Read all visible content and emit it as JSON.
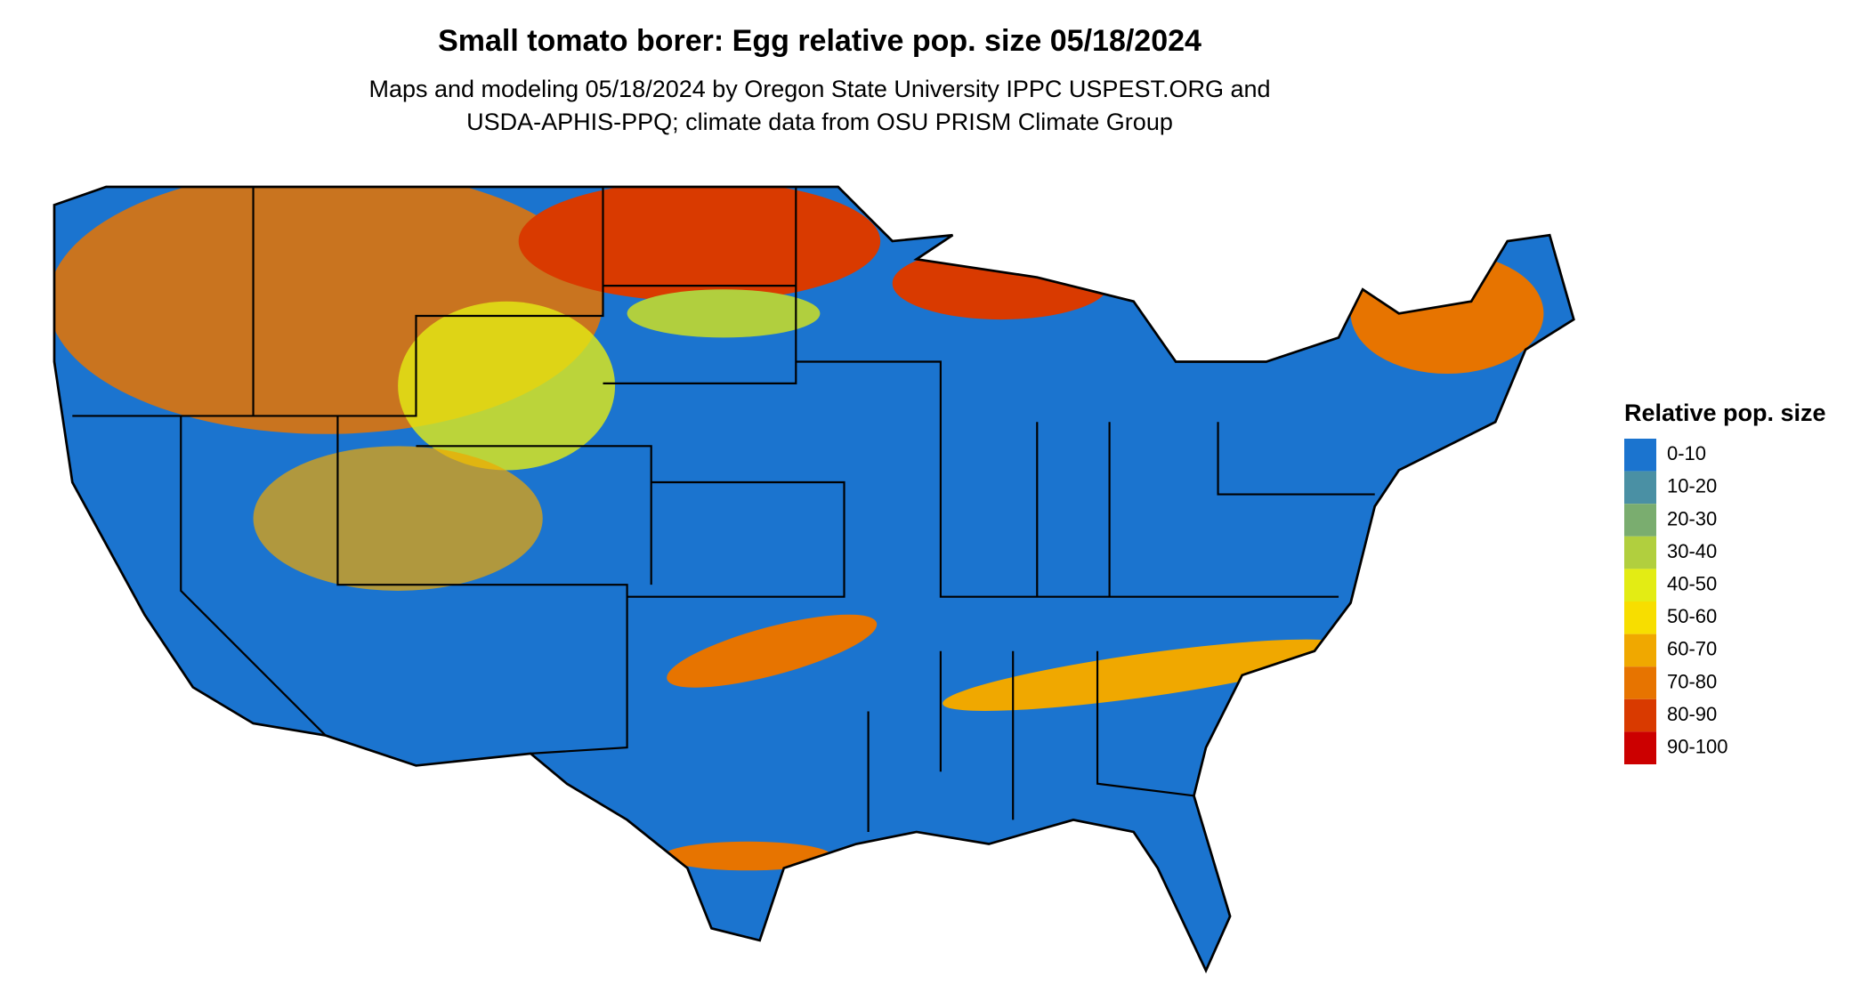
{
  "title": "Small tomato borer: Egg relative pop. size 05/18/2024",
  "subtitle_lines": [
    "Maps and modeling 05/18/2024 by Oregon State University IPPC USPEST.ORG and",
    "USDA-APHIS-PPQ; climate data from OSU PRISM Climate Group"
  ],
  "legend": {
    "title": "Relative pop. size",
    "items": [
      {
        "label": "0-10",
        "color": "#1b74cf"
      },
      {
        "label": "10-20",
        "color": "#4a90a4"
      },
      {
        "label": "20-30",
        "color": "#7aad6f"
      },
      {
        "label": "30-40",
        "color": "#b1cf3e"
      },
      {
        "label": "40-50",
        "color": "#e3ec14"
      },
      {
        "label": "50-60",
        "color": "#f7de00"
      },
      {
        "label": "60-70",
        "color": "#f0a800"
      },
      {
        "label": "70-80",
        "color": "#e77400"
      },
      {
        "label": "80-90",
        "color": "#d93a00"
      },
      {
        "label": "90-100",
        "color": "#cc0000"
      }
    ]
  }
}
